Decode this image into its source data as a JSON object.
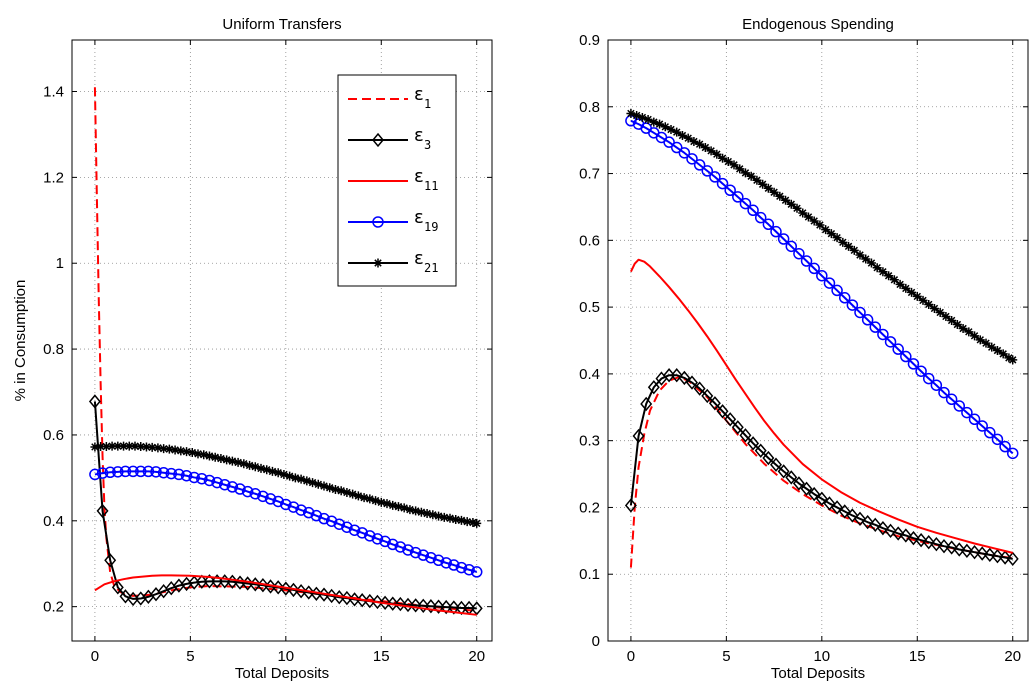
{
  "chart_data": [
    {
      "type": "line",
      "title": "Uniform Transfers",
      "xlabel": "Total Deposits",
      "ylabel": "% in Consumption",
      "xlim": [
        -1.2,
        20.8
      ],
      "ylim": [
        0.12,
        1.52
      ],
      "xticks": [
        0,
        5,
        10,
        15,
        20
      ],
      "yticks": [
        0.2,
        0.4,
        0.6,
        0.8,
        1,
        1.2,
        1.4
      ],
      "xtick_labels": [
        "0",
        "5",
        "10",
        "15",
        "20"
      ],
      "ytick_labels": [
        "0.2",
        "0.4",
        "0.6",
        "0.8",
        "1",
        "1.2",
        "1.4"
      ],
      "grid": true,
      "legend": {
        "placement": "top-right",
        "entries": [
          {
            "symbol": "ε",
            "sub": "1"
          },
          {
            "symbol": "ε",
            "sub": "3"
          },
          {
            "symbol": "ε",
            "sub": "11"
          },
          {
            "symbol": "ε",
            "sub": "19"
          },
          {
            "symbol": "ε",
            "sub": "21"
          }
        ]
      },
      "series": [
        {
          "key": "e1",
          "color": "#ff0000",
          "style": "dashed",
          "marker": "none",
          "x": [
            0,
            0.1,
            0.2,
            0.3,
            0.4,
            0.5,
            0.6,
            0.8,
            1.0,
            1.3,
            1.6,
            2.0,
            3,
            4,
            5,
            6,
            8,
            10,
            12,
            14,
            16,
            18,
            20
          ],
          "y": [
            1.41,
            1.16,
            0.92,
            0.72,
            0.55,
            0.43,
            0.36,
            0.28,
            0.25,
            0.235,
            0.228,
            0.225,
            0.228,
            0.238,
            0.245,
            0.248,
            0.246,
            0.238,
            0.228,
            0.218,
            0.208,
            0.198,
            0.19
          ]
        },
        {
          "key": "e3",
          "color": "#000000",
          "style": "solid",
          "marker": "diamond",
          "x": [
            0,
            0.4,
            0.8,
            1.2,
            1.6,
            2.0,
            2.4,
            2.8,
            3.2,
            3.6,
            4.0,
            4.4,
            4.8,
            5.2,
            5.6,
            6.0,
            6.4,
            6.8,
            7.2,
            7.6,
            8.0,
            8.4,
            8.8,
            9.2,
            9.6,
            10.0,
            10.4,
            10.8,
            11.2,
            11.6,
            12.0,
            12.4,
            12.8,
            13.2,
            13.6,
            14.0,
            14.4,
            14.8,
            15.2,
            15.6,
            16.0,
            16.4,
            16.8,
            17.2,
            17.6,
            18.0,
            18.4,
            18.8,
            19.2,
            19.6,
            20.0
          ],
          "y": [
            0.678,
            0.423,
            0.308,
            0.245,
            0.224,
            0.218,
            0.219,
            0.223,
            0.229,
            0.236,
            0.243,
            0.249,
            0.253,
            0.256,
            0.258,
            0.259,
            0.259,
            0.259,
            0.258,
            0.256,
            0.254,
            0.252,
            0.25,
            0.247,
            0.245,
            0.242,
            0.239,
            0.236,
            0.233,
            0.23,
            0.228,
            0.225,
            0.222,
            0.22,
            0.217,
            0.215,
            0.213,
            0.211,
            0.209,
            0.207,
            0.206,
            0.204,
            0.203,
            0.202,
            0.201,
            0.2,
            0.199,
            0.198,
            0.197,
            0.197,
            0.196
          ]
        },
        {
          "key": "e11",
          "color": "#ff0000",
          "style": "solid",
          "marker": "none",
          "x": [
            0,
            0.5,
            1,
            1.5,
            2,
            2.5,
            3,
            3.5,
            4,
            5,
            6,
            7,
            8,
            9,
            10,
            11,
            12,
            13,
            14,
            15,
            16,
            17,
            18,
            19,
            20
          ],
          "y": [
            0.238,
            0.252,
            0.259,
            0.264,
            0.268,
            0.27,
            0.272,
            0.273,
            0.273,
            0.272,
            0.269,
            0.264,
            0.258,
            0.251,
            0.244,
            0.237,
            0.23,
            0.223,
            0.216,
            0.209,
            0.203,
            0.197,
            0.191,
            0.186,
            0.181
          ]
        },
        {
          "key": "e19",
          "color": "#0000ff",
          "style": "solid",
          "marker": "circle",
          "x": [
            0,
            0.4,
            0.8,
            1.2,
            1.6,
            2.0,
            2.4,
            2.8,
            3.2,
            3.6,
            4.0,
            4.4,
            4.8,
            5.2,
            5.6,
            6.0,
            6.4,
            6.8,
            7.2,
            7.6,
            8.0,
            8.4,
            8.8,
            9.2,
            9.6,
            10.0,
            10.4,
            10.8,
            11.2,
            11.6,
            12.0,
            12.4,
            12.8,
            13.2,
            13.6,
            14.0,
            14.4,
            14.8,
            15.2,
            15.6,
            16.0,
            16.4,
            16.8,
            17.2,
            17.6,
            18.0,
            18.4,
            18.8,
            19.2,
            19.6,
            20.0
          ],
          "y": [
            0.508,
            0.511,
            0.513,
            0.514,
            0.515,
            0.515,
            0.515,
            0.515,
            0.514,
            0.512,
            0.51,
            0.508,
            0.505,
            0.501,
            0.498,
            0.494,
            0.489,
            0.484,
            0.479,
            0.474,
            0.468,
            0.463,
            0.457,
            0.451,
            0.445,
            0.438,
            0.432,
            0.425,
            0.419,
            0.412,
            0.405,
            0.399,
            0.392,
            0.385,
            0.378,
            0.372,
            0.365,
            0.358,
            0.352,
            0.345,
            0.339,
            0.332,
            0.326,
            0.32,
            0.314,
            0.308,
            0.302,
            0.297,
            0.291,
            0.286,
            0.281
          ]
        },
        {
          "key": "e21",
          "color": "#000000",
          "style": "solid",
          "marker": "star",
          "x": [
            0,
            0.3,
            0.6,
            0.9,
            1.2,
            1.5,
            1.8,
            2.1,
            2.4,
            2.7,
            3.0,
            3.3,
            3.6,
            3.9,
            4.2,
            4.5,
            4.8,
            5.1,
            5.4,
            5.7,
            6.0,
            6.3,
            6.6,
            6.9,
            7.2,
            7.5,
            7.8,
            8.1,
            8.4,
            8.7,
            9.0,
            9.3,
            9.6,
            9.9,
            10.2,
            10.5,
            10.8,
            11.1,
            11.4,
            11.7,
            12.0,
            12.3,
            12.6,
            12.9,
            13.2,
            13.5,
            13.8,
            14.1,
            14.4,
            14.7,
            15.0,
            15.3,
            15.6,
            15.9,
            16.2,
            16.5,
            16.8,
            17.1,
            17.4,
            17.7,
            18.0,
            18.3,
            18.6,
            18.9,
            19.2,
            19.5,
            19.8,
            20.0
          ],
          "y": [
            0.572,
            0.573,
            0.573,
            0.574,
            0.574,
            0.574,
            0.574,
            0.574,
            0.573,
            0.572,
            0.571,
            0.57,
            0.568,
            0.567,
            0.565,
            0.563,
            0.561,
            0.559,
            0.556,
            0.554,
            0.551,
            0.548,
            0.545,
            0.542,
            0.539,
            0.536,
            0.533,
            0.529,
            0.526,
            0.522,
            0.519,
            0.515,
            0.512,
            0.508,
            0.504,
            0.5,
            0.497,
            0.493,
            0.489,
            0.485,
            0.481,
            0.477,
            0.473,
            0.47,
            0.466,
            0.462,
            0.458,
            0.454,
            0.451,
            0.447,
            0.443,
            0.44,
            0.436,
            0.433,
            0.43,
            0.426,
            0.423,
            0.42,
            0.417,
            0.414,
            0.411,
            0.408,
            0.406,
            0.403,
            0.401,
            0.398,
            0.396,
            0.394
          ]
        }
      ]
    },
    {
      "type": "line",
      "title": "Endogenous Spending",
      "xlabel": "Total Deposits",
      "ylabel": "",
      "xlim": [
        -1.2,
        20.8
      ],
      "ylim": [
        0,
        0.9
      ],
      "xticks": [
        0,
        5,
        10,
        15,
        20
      ],
      "yticks": [
        0,
        0.1,
        0.2,
        0.3,
        0.4,
        0.5,
        0.6,
        0.7,
        0.8,
        0.9
      ],
      "xtick_labels": [
        "0",
        "5",
        "10",
        "15",
        "20"
      ],
      "ytick_labels": [
        "0",
        "0.1",
        "0.2",
        "0.3",
        "0.4",
        "0.5",
        "0.6",
        "0.7",
        "0.8",
        "0.9"
      ],
      "grid": true,
      "series": [
        {
          "key": "e1",
          "color": "#ff0000",
          "style": "dashed",
          "marker": "none",
          "x": [
            0,
            0.2,
            0.4,
            0.7,
            1.0,
            1.5,
            2.0,
            2.5,
            3,
            4,
            5,
            6,
            7,
            8,
            9,
            10,
            11,
            12,
            13,
            14,
            15,
            16,
            17,
            18,
            19,
            20
          ],
          "y": [
            0.11,
            0.2,
            0.26,
            0.31,
            0.345,
            0.375,
            0.39,
            0.395,
            0.39,
            0.365,
            0.33,
            0.295,
            0.265,
            0.24,
            0.22,
            0.203,
            0.188,
            0.176,
            0.166,
            0.157,
            0.15,
            0.144,
            0.138,
            0.133,
            0.128,
            0.124
          ]
        },
        {
          "key": "e3",
          "color": "#000000",
          "style": "solid",
          "marker": "diamond",
          "x": [
            0,
            0.4,
            0.8,
            1.2,
            1.6,
            2.0,
            2.4,
            2.8,
            3.2,
            3.6,
            4.0,
            4.4,
            4.8,
            5.2,
            5.6,
            6.0,
            6.4,
            6.8,
            7.2,
            7.6,
            8.0,
            8.4,
            8.8,
            9.2,
            9.6,
            10.0,
            10.4,
            10.8,
            11.2,
            11.6,
            12.0,
            12.4,
            12.8,
            13.2,
            13.6,
            14.0,
            14.4,
            14.8,
            15.2,
            15.6,
            16.0,
            16.4,
            16.8,
            17.2,
            17.6,
            18.0,
            18.4,
            18.8,
            19.2,
            19.6,
            20.0
          ],
          "y": [
            0.203,
            0.307,
            0.355,
            0.38,
            0.393,
            0.398,
            0.398,
            0.394,
            0.387,
            0.378,
            0.367,
            0.356,
            0.344,
            0.332,
            0.32,
            0.308,
            0.296,
            0.285,
            0.274,
            0.264,
            0.254,
            0.245,
            0.236,
            0.228,
            0.22,
            0.213,
            0.206,
            0.2,
            0.194,
            0.188,
            0.183,
            0.178,
            0.174,
            0.169,
            0.165,
            0.161,
            0.158,
            0.154,
            0.151,
            0.148,
            0.145,
            0.142,
            0.14,
            0.137,
            0.135,
            0.133,
            0.131,
            0.129,
            0.127,
            0.125,
            0.123
          ]
        },
        {
          "key": "e11",
          "color": "#ff0000",
          "style": "solid",
          "marker": "none",
          "x": [
            0,
            0.2,
            0.4,
            0.7,
            1,
            1.5,
            2,
            2.5,
            3,
            3.5,
            4,
            4.5,
            5,
            5.5,
            6,
            6.5,
            7,
            7.5,
            8,
            9,
            10,
            11,
            12,
            13,
            14,
            15,
            16,
            17,
            18,
            19,
            20
          ],
          "y": [
            0.553,
            0.565,
            0.571,
            0.568,
            0.561,
            0.546,
            0.53,
            0.513,
            0.495,
            0.476,
            0.456,
            0.435,
            0.413,
            0.391,
            0.37,
            0.349,
            0.329,
            0.311,
            0.294,
            0.265,
            0.242,
            0.223,
            0.207,
            0.194,
            0.182,
            0.171,
            0.162,
            0.154,
            0.146,
            0.139,
            0.132
          ]
        },
        {
          "key": "e19",
          "color": "#0000ff",
          "style": "solid",
          "marker": "circle",
          "x": [
            0,
            0.4,
            0.8,
            1.2,
            1.6,
            2.0,
            2.4,
            2.8,
            3.2,
            3.6,
            4.0,
            4.4,
            4.8,
            5.2,
            5.6,
            6.0,
            6.4,
            6.8,
            7.2,
            7.6,
            8.0,
            8.4,
            8.8,
            9.2,
            9.6,
            10.0,
            10.4,
            10.8,
            11.2,
            11.6,
            12.0,
            12.4,
            12.8,
            13.2,
            13.6,
            14.0,
            14.4,
            14.8,
            15.2,
            15.6,
            16.0,
            16.4,
            16.8,
            17.2,
            17.6,
            18.0,
            18.4,
            18.8,
            19.2,
            19.6,
            20.0
          ],
          "y": [
            0.779,
            0.774,
            0.768,
            0.761,
            0.754,
            0.747,
            0.739,
            0.731,
            0.722,
            0.713,
            0.704,
            0.695,
            0.685,
            0.675,
            0.665,
            0.655,
            0.645,
            0.634,
            0.624,
            0.613,
            0.602,
            0.591,
            0.58,
            0.569,
            0.558,
            0.547,
            0.536,
            0.525,
            0.514,
            0.503,
            0.492,
            0.481,
            0.47,
            0.459,
            0.448,
            0.437,
            0.426,
            0.415,
            0.404,
            0.393,
            0.383,
            0.372,
            0.362,
            0.352,
            0.342,
            0.332,
            0.322,
            0.312,
            0.302,
            0.291,
            0.281
          ]
        },
        {
          "key": "e21",
          "color": "#000000",
          "style": "solid",
          "marker": "star",
          "x": [
            0,
            0.3,
            0.6,
            0.9,
            1.2,
            1.5,
            1.8,
            2.1,
            2.4,
            2.7,
            3.0,
            3.3,
            3.6,
            3.9,
            4.2,
            4.5,
            4.8,
            5.1,
            5.4,
            5.7,
            6.0,
            6.3,
            6.6,
            6.9,
            7.2,
            7.5,
            7.8,
            8.1,
            8.4,
            8.7,
            9.0,
            9.3,
            9.6,
            9.9,
            10.2,
            10.5,
            10.8,
            11.1,
            11.4,
            11.7,
            12.0,
            12.3,
            12.6,
            12.9,
            13.2,
            13.5,
            13.8,
            14.1,
            14.4,
            14.7,
            15.0,
            15.3,
            15.6,
            15.9,
            16.2,
            16.5,
            16.8,
            17.1,
            17.4,
            17.7,
            18.0,
            18.3,
            18.6,
            18.9,
            19.2,
            19.5,
            19.8,
            20.0
          ],
          "y": [
            0.79,
            0.787,
            0.784,
            0.781,
            0.777,
            0.774,
            0.77,
            0.766,
            0.762,
            0.757,
            0.753,
            0.748,
            0.744,
            0.739,
            0.734,
            0.729,
            0.723,
            0.718,
            0.713,
            0.707,
            0.701,
            0.696,
            0.69,
            0.684,
            0.678,
            0.672,
            0.666,
            0.66,
            0.654,
            0.648,
            0.641,
            0.635,
            0.629,
            0.623,
            0.616,
            0.61,
            0.604,
            0.597,
            0.591,
            0.585,
            0.578,
            0.572,
            0.566,
            0.559,
            0.553,
            0.547,
            0.541,
            0.534,
            0.528,
            0.522,
            0.516,
            0.51,
            0.504,
            0.498,
            0.492,
            0.486,
            0.48,
            0.474,
            0.468,
            0.463,
            0.457,
            0.451,
            0.446,
            0.44,
            0.435,
            0.43,
            0.424,
            0.421
          ]
        }
      ]
    }
  ]
}
